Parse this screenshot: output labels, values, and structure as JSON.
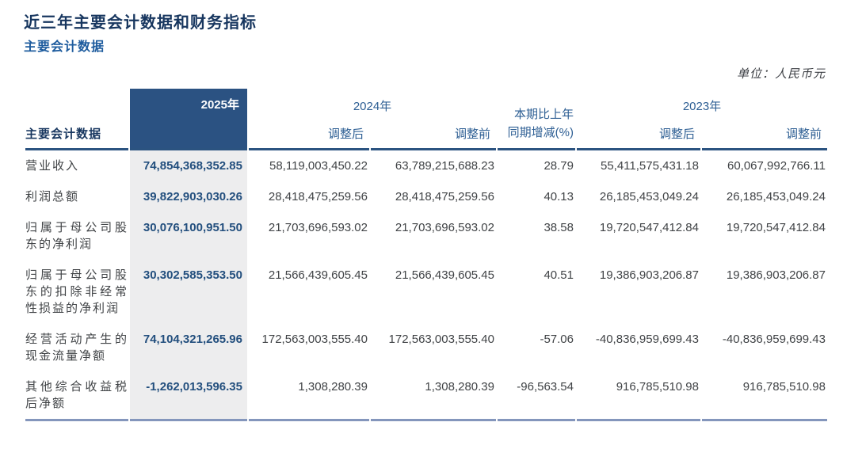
{
  "page": {
    "title": "近三年主要会计数据和财务指标",
    "subtitle": "主要会计数据",
    "unit_note": "单位：人民币元"
  },
  "table": {
    "corner_label": "主要会计数据",
    "col_2025": "2025年",
    "col_2024": "2024年",
    "col_2023": "2023年",
    "col_change_line1": "本期比上年",
    "col_change_line2": "同期增减(%)",
    "sub_adjusted_after": "调整后",
    "sub_adjusted_before": "调整前",
    "rows": [
      {
        "label": "营业收入",
        "v2025": "74,854,368,352.85",
        "v2024_after": "58,119,003,450.22",
        "v2024_before": "63,789,215,688.23",
        "change": "28.79",
        "v2023_after": "55,411,575,431.18",
        "v2023_before": "60,067,992,766.11"
      },
      {
        "label": "利润总额",
        "v2025": "39,822,903,030.26",
        "v2024_after": "28,418,475,259.56",
        "v2024_before": "28,418,475,259.56",
        "change": "40.13",
        "v2023_after": "26,185,453,049.24",
        "v2023_before": "26,185,453,049.24"
      },
      {
        "label": "归属于母公司股东的净利润",
        "v2025": "30,076,100,951.50",
        "v2024_after": "21,703,696,593.02",
        "v2024_before": "21,703,696,593.02",
        "change": "38.58",
        "v2023_after": "19,720,547,412.84",
        "v2023_before": "19,720,547,412.84"
      },
      {
        "label": "归属于母公司股东的扣除非经常性损益的净利润",
        "v2025": "30,302,585,353.50",
        "v2024_after": "21,566,439,605.45",
        "v2024_before": "21,566,439,605.45",
        "change": "40.51",
        "v2023_after": "19,386,903,206.87",
        "v2023_before": "19,386,903,206.87"
      },
      {
        "label": "经营活动产生的现金流量净额",
        "v2025": "74,104,321,265.96",
        "v2024_after": "172,563,003,555.40",
        "v2024_before": "172,563,003,555.40",
        "change": "-57.06",
        "v2023_after": "-40,836,959,699.43",
        "v2023_before": "-40,836,959,699.43"
      },
      {
        "label": "其他综合收益税后净额",
        "v2025": "-1,262,013,596.35",
        "v2024_after": "1,308,280.39",
        "v2024_before": "1,308,280.39",
        "change": "-96,563.54",
        "v2023_after": "916,785,510.98",
        "v2023_before": "916,785,510.98"
      }
    ]
  },
  "colors": {
    "header_bg": "#2b5282",
    "header_text": "#ffffff",
    "title_color": "#17365f",
    "subtitle_color": "#1e5c9e",
    "colhead_color": "#2e5f94",
    "value_2025_color": "#234f7e",
    "band_bg": "#ededee",
    "header_rule": "#2b5380",
    "bottom_rule": "#8496bc",
    "body_text": "#404346"
  }
}
